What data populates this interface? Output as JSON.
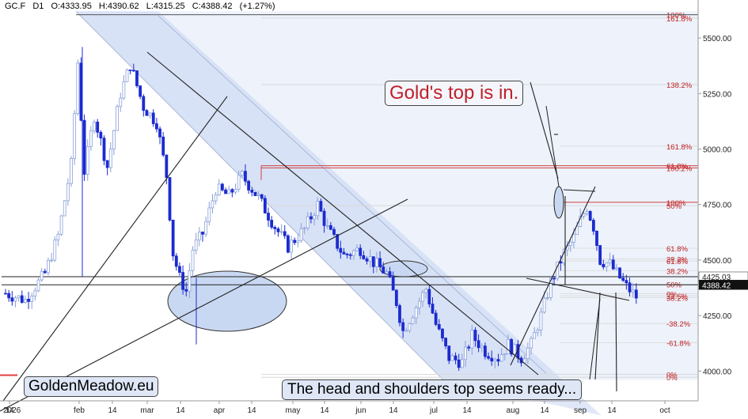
{
  "header": {
    "symbol": "GC.F",
    "timeframe": "D1",
    "open": "O:4333.95",
    "high": "H:4390.62",
    "low": "L:4315.25",
    "close": "C:4388.42",
    "change": "(+1.27%)"
  },
  "annotations": {
    "gold_top": "Gold's top is in.",
    "head_shoulders": "The head and shoulders top seems ready...",
    "brand": "GoldenMeadow.eu"
  },
  "price_labels": {
    "level_line": "4425.03",
    "last_price": "4388.42"
  },
  "chart_data": {
    "type": "candlestick",
    "y_ticks": [
      4000,
      4250,
      4500,
      4750,
      5000,
      5250,
      5500
    ],
    "y_tick_labels": [
      "4000.00",
      "4250.00",
      "4500.00",
      "4750.00",
      "5000.00",
      "5250.00",
      "5500.00"
    ],
    "ylim": [
      3930,
      5580
    ],
    "x_ticks": [
      "2026",
      "14",
      "feb",
      "14",
      "mar",
      "14",
      "apr",
      "14",
      "may",
      "14",
      "jun",
      "14",
      "jul",
      "14",
      "aug",
      "14",
      "sep",
      "14",
      "oct"
    ],
    "fib_left": [
      {
        "label": "100%",
        "value": 5605
      },
      {
        "label": "161.8%",
        "value": 5590
      },
      {
        "label": "138.2%",
        "value": 5290
      },
      {
        "label": "61.8%",
        "value": 4925
      },
      {
        "label": "100.2%",
        "value": 4915
      },
      {
        "label": "50%",
        "value": 4745
      },
      {
        "label": "0%",
        "value": 3985
      },
      {
        "label": "0%",
        "value": 3972
      }
    ],
    "fib_right": [
      {
        "label": "161.8%",
        "value": 5013
      },
      {
        "label": "100%",
        "value": 4760
      },
      {
        "label": "61.8%",
        "value": 4553
      },
      {
        "label": "38.2%",
        "value": 4505
      },
      {
        "label": "61.8%",
        "value": 4496
      },
      {
        "label": "38.2%",
        "value": 4452
      },
      {
        "label": "50%",
        "value": 4391
      },
      {
        "label": "0%",
        "value": 4349
      },
      {
        "label": "23.6%",
        "value": 4339
      },
      {
        "label": "38.2%",
        "value": 4331
      },
      {
        "label": "-38.2%",
        "value": 4214
      },
      {
        "label": "-61.8%",
        "value": 4128
      }
    ],
    "horizontal_levels": [
      4425.03,
      4388.42
    ],
    "last_close": 4388.42,
    "segments": [
      {
        "d": 0,
        "p": 4350
      },
      {
        "d": 6,
        "p": 4320
      },
      {
        "d": 12,
        "p": 4440
      },
      {
        "d": 16,
        "p": 4610
      },
      {
        "d": 20,
        "p": 4930
      },
      {
        "d": 22,
        "p": 5390
      },
      {
        "d": 24,
        "p": 4900
      },
      {
        "d": 27,
        "p": 5150
      },
      {
        "d": 31,
        "p": 4920
      },
      {
        "d": 35,
        "p": 5250
      },
      {
        "d": 38,
        "p": 5380
      },
      {
        "d": 42,
        "p": 5190
      },
      {
        "d": 46,
        "p": 5120
      },
      {
        "d": 49,
        "p": 4880
      },
      {
        "d": 51,
        "p": 4530
      },
      {
        "d": 53,
        "p": 4420
      },
      {
        "d": 55,
        "p": 4360
      },
      {
        "d": 57,
        "p": 4550
      },
      {
        "d": 60,
        "p": 4620
      },
      {
        "d": 64,
        "p": 4820
      },
      {
        "d": 68,
        "p": 4790
      },
      {
        "d": 72,
        "p": 4880
      },
      {
        "d": 77,
        "p": 4780
      },
      {
        "d": 82,
        "p": 4650
      },
      {
        "d": 86,
        "p": 4560
      },
      {
        "d": 91,
        "p": 4640
      },
      {
        "d": 95,
        "p": 4750
      },
      {
        "d": 98,
        "p": 4640
      },
      {
        "d": 103,
        "p": 4520
      },
      {
        "d": 108,
        "p": 4550
      },
      {
        "d": 112,
        "p": 4490
      },
      {
        "d": 116,
        "p": 4440
      },
      {
        "d": 119,
        "p": 4310
      },
      {
        "d": 121,
        "p": 4180
      },
      {
        "d": 125,
        "p": 4290
      },
      {
        "d": 128,
        "p": 4370
      },
      {
        "d": 131,
        "p": 4210
      },
      {
        "d": 135,
        "p": 4060
      },
      {
        "d": 139,
        "p": 4040
      },
      {
        "d": 142,
        "p": 4160
      },
      {
        "d": 146,
        "p": 4090
      },
      {
        "d": 150,
        "p": 4060
      },
      {
        "d": 153,
        "p": 4120
      },
      {
        "d": 157,
        "p": 4060
      },
      {
        "d": 160,
        "p": 4120
      },
      {
        "d": 163,
        "p": 4250
      },
      {
        "d": 166,
        "p": 4400
      },
      {
        "d": 170,
        "p": 4530
      },
      {
        "d": 173,
        "p": 4600
      },
      {
        "d": 175,
        "p": 4680
      },
      {
        "d": 177,
        "p": 4740
      },
      {
        "d": 179,
        "p": 4650
      },
      {
        "d": 181,
        "p": 4500
      },
      {
        "d": 184,
        "p": 4480
      },
      {
        "d": 186,
        "p": 4440
      },
      {
        "d": 189,
        "p": 4380
      },
      {
        "d": 192,
        "p": 4335
      },
      {
        "d": 193,
        "p": 4388
      }
    ]
  }
}
